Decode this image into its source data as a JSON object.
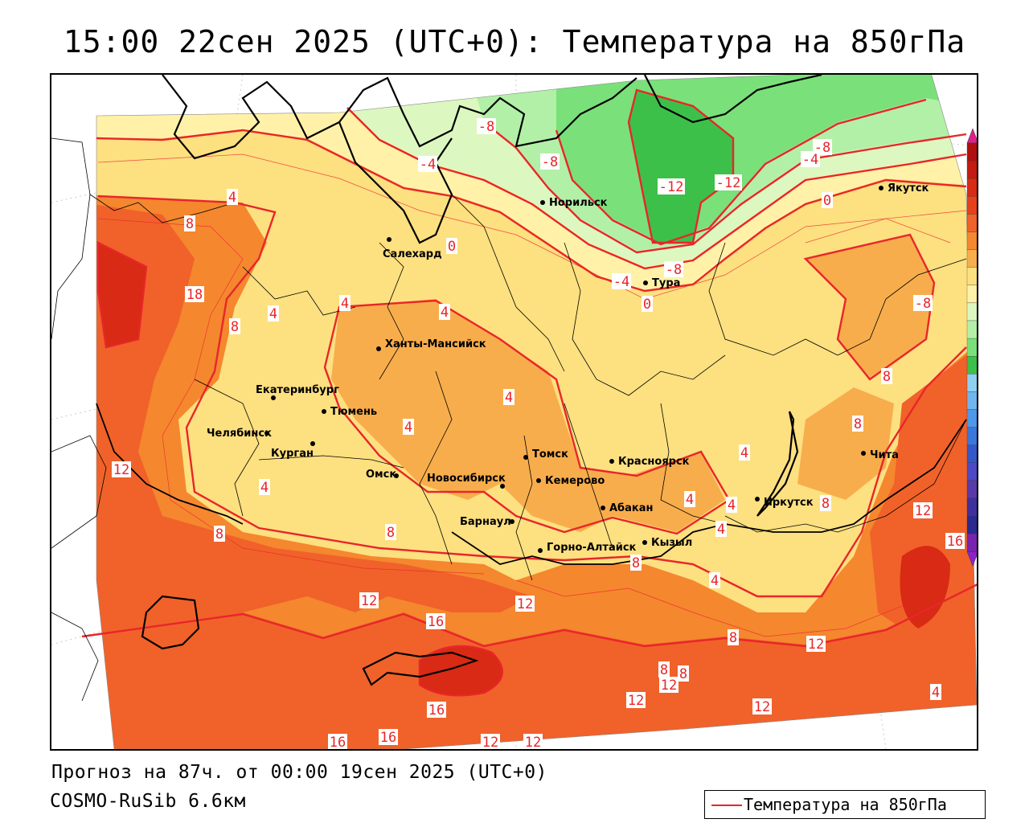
{
  "header": {
    "title": "15:00 22сен 2025 (UTC+0): Температура на 850гПа"
  },
  "footer": {
    "forecast": "Прогноз на 87ч. от 00:00 19сен 2025 (UTC+0)",
    "model": "COSMO-RuSib 6.6км"
  },
  "legend": {
    "label": "Температура на 850гПа",
    "line_color": "#e8262a"
  },
  "colorbar": {
    "levels": [
      "28",
      "24",
      "20",
      "16",
      "12",
      "8",
      "4",
      "0",
      "-4",
      "-8",
      "-12",
      "-16",
      "-20",
      "-24",
      "-28",
      "-32",
      "-36",
      "-40",
      "-44",
      "-48",
      "-52",
      "-56",
      "-60"
    ],
    "colors": [
      "#b01010",
      "#c41a12",
      "#d82a14",
      "#e8401a",
      "#f0622a",
      "#f5872f",
      "#f8ad4c",
      "#fde080",
      "#fff2a8",
      "#dcf7c0",
      "#b2f0a8",
      "#7ae07a",
      "#3cc04a",
      "#8fcfef",
      "#6fb6ee",
      "#4f97e8",
      "#3a78dc",
      "#3458c8",
      "#4e4ac4",
      "#5a3aa8",
      "#40309e",
      "#2a2a90",
      "#7a22b0"
    ],
    "top_arrow_color": "#e0208a",
    "bottom_arrow_color": "#9020c8"
  },
  "cities": [
    {
      "name": "Норильск"
    },
    {
      "name": "Якутск"
    },
    {
      "name": "Салехард"
    },
    {
      "name": "Тура"
    },
    {
      "name": "Ханты-Мансийск"
    },
    {
      "name": "Екатеринбург"
    },
    {
      "name": "Тюмень"
    },
    {
      "name": "Челябинск"
    },
    {
      "name": "Курган"
    },
    {
      "name": "Омск"
    },
    {
      "name": "Томск"
    },
    {
      "name": "Новосибирск"
    },
    {
      "name": "Кемерово"
    },
    {
      "name": "Красноярск"
    },
    {
      "name": "Абакан"
    },
    {
      "name": "Барнаул"
    },
    {
      "name": "Горно-Алтайск"
    },
    {
      "name": "Кызыл"
    },
    {
      "name": "Иркутск"
    },
    {
      "name": "Чита"
    }
  ],
  "isotherm_labels": [
    "-8",
    "-8",
    "-4",
    "-8",
    "-12",
    "-12",
    "-4",
    "-8",
    "0",
    "0",
    "-8",
    "-4",
    "0",
    "4",
    "8",
    "4",
    "18",
    "8",
    "4",
    "4",
    "4",
    "4",
    "4",
    "8",
    "8",
    "8",
    "12",
    "4",
    "8",
    "4",
    "4",
    "4",
    "8",
    "12",
    "8",
    "16",
    "12",
    "16",
    "12",
    "4",
    "8",
    "12",
    "8",
    "8",
    "12",
    "12",
    "16",
    "16",
    "16",
    "12",
    "12",
    "12",
    "4"
  ]
}
